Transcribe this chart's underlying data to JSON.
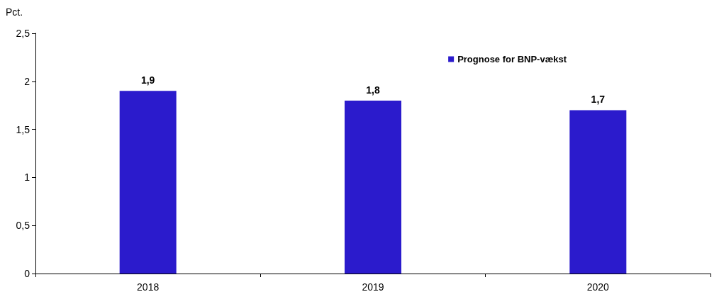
{
  "chart_data": {
    "type": "bar",
    "ylabel": "Pct.",
    "categories": [
      "2018",
      "2019",
      "2020"
    ],
    "series": [
      {
        "name": "Prognose for BNP-vækst",
        "color": "#2b1bcc",
        "values": [
          1.9,
          1.8,
          1.7
        ],
        "value_labels": [
          "1,9",
          "1,8",
          "1,7"
        ]
      }
    ],
    "ylim": [
      0,
      2.5
    ],
    "yticks": [
      0,
      {
        "value": 0.5,
        "label": "0,5"
      },
      1,
      {
        "value": 1.5,
        "label": "1,5"
      },
      2,
      {
        "value": 2.5,
        "label": "2,5"
      }
    ],
    "grid": false,
    "legend": "top right"
  }
}
